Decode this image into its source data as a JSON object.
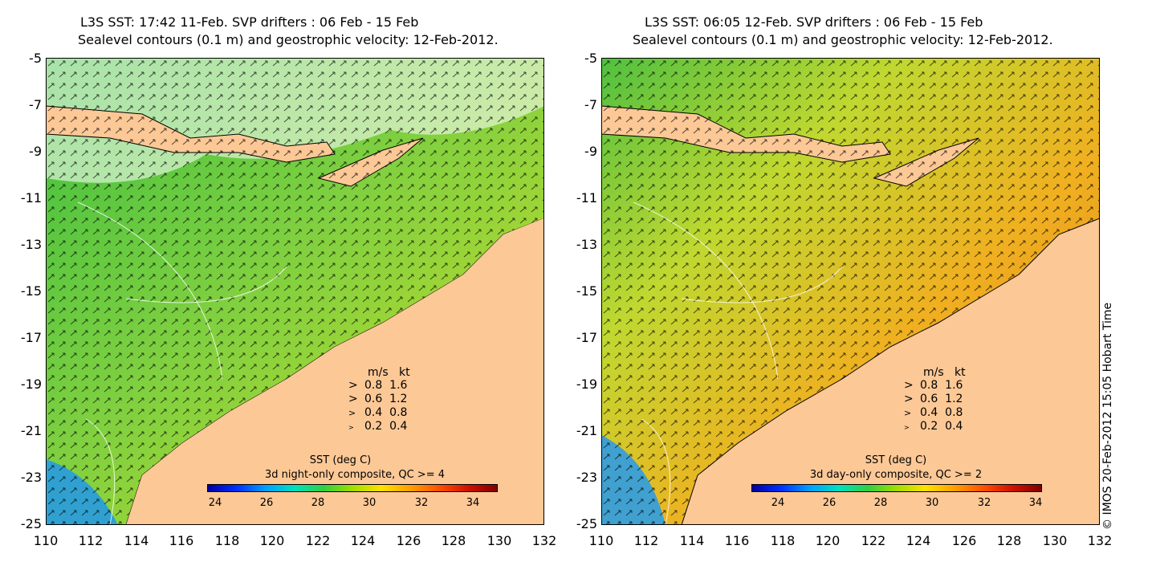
{
  "panels": [
    {
      "id": "left",
      "title_line1": "L3S SST: 17:42 11-Feb. SVP drifters : 06 Feb - 15 Feb",
      "title_line2": "Sealevel contours (0.1 m) and geostrophic velocity: 12-Feb-2012.",
      "colorbar_title": "SST (deg C)",
      "colorbar_subtitle": "3d night-only composite, QC >= 4",
      "sea_base_color": "#7fd040",
      "land_color": "#fcc896"
    },
    {
      "id": "right",
      "title_line1": "L3S SST: 06:05 12-Feb. SVP drifters : 06 Feb - 15 Feb",
      "title_line2": "Sealevel contours (0.1 m) and geostrophic velocity: 12-Feb-2012.",
      "colorbar_title": "SST (deg C)",
      "colorbar_subtitle": "3d day-only composite, QC >= 2",
      "sea_base_color": "#f0b020",
      "land_color": "#fcc896"
    }
  ],
  "y_ticks": [
    "-5",
    "-7",
    "-9",
    "-11",
    "-13",
    "-15",
    "-17",
    "-19",
    "-21",
    "-23",
    "-25"
  ],
  "x_ticks": [
    "110",
    "112",
    "114",
    "116",
    "118",
    "120",
    "122",
    "124",
    "126",
    "128",
    "130",
    "132"
  ],
  "colorbar_ticks": [
    "24",
    "26",
    "28",
    "30",
    "32",
    "34"
  ],
  "velocity_legend": {
    "header_ms": "m/s",
    "header_kt": "kt",
    "rows": [
      {
        "ms": "0.8",
        "kt": "1.6"
      },
      {
        "ms": "0.6",
        "kt": "1.2"
      },
      {
        "ms": "0.4",
        "kt": "0.8"
      },
      {
        "ms": "0.2",
        "kt": "0.4"
      }
    ]
  },
  "credit": "© IMOS 20-Feb-2012 15:05 Hobart Time"
}
